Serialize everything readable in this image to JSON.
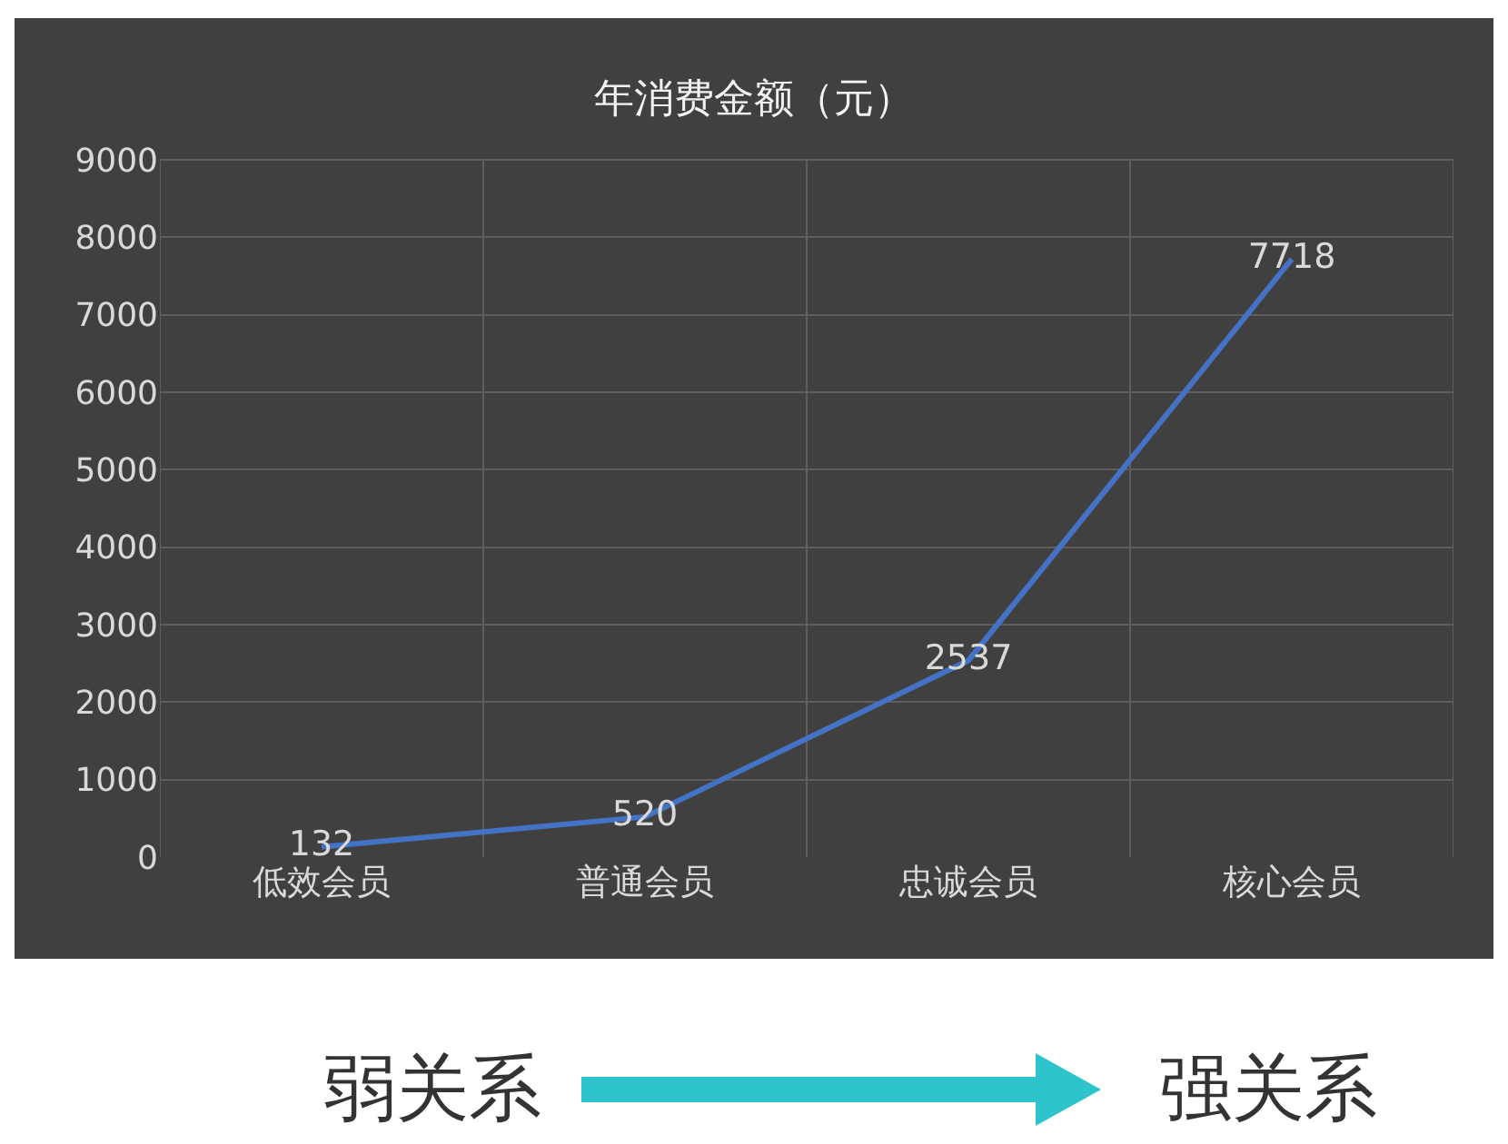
{
  "chart_data": {
    "type": "line",
    "title": "年消费金额（元）",
    "categories": [
      "低效会员",
      "普通会员",
      "忠诚会员",
      "核心会员"
    ],
    "values": [
      132,
      520,
      2537,
      7718
    ],
    "color": "#4472c4",
    "ylim": [
      0,
      9000
    ],
    "yticks": [
      0,
      1000,
      2000,
      3000,
      4000,
      5000,
      6000,
      7000,
      8000,
      9000
    ],
    "grid": true,
    "data_labels": true,
    "marker": "none",
    "annotations": [
      "弱关系",
      "强关系"
    ]
  }
}
